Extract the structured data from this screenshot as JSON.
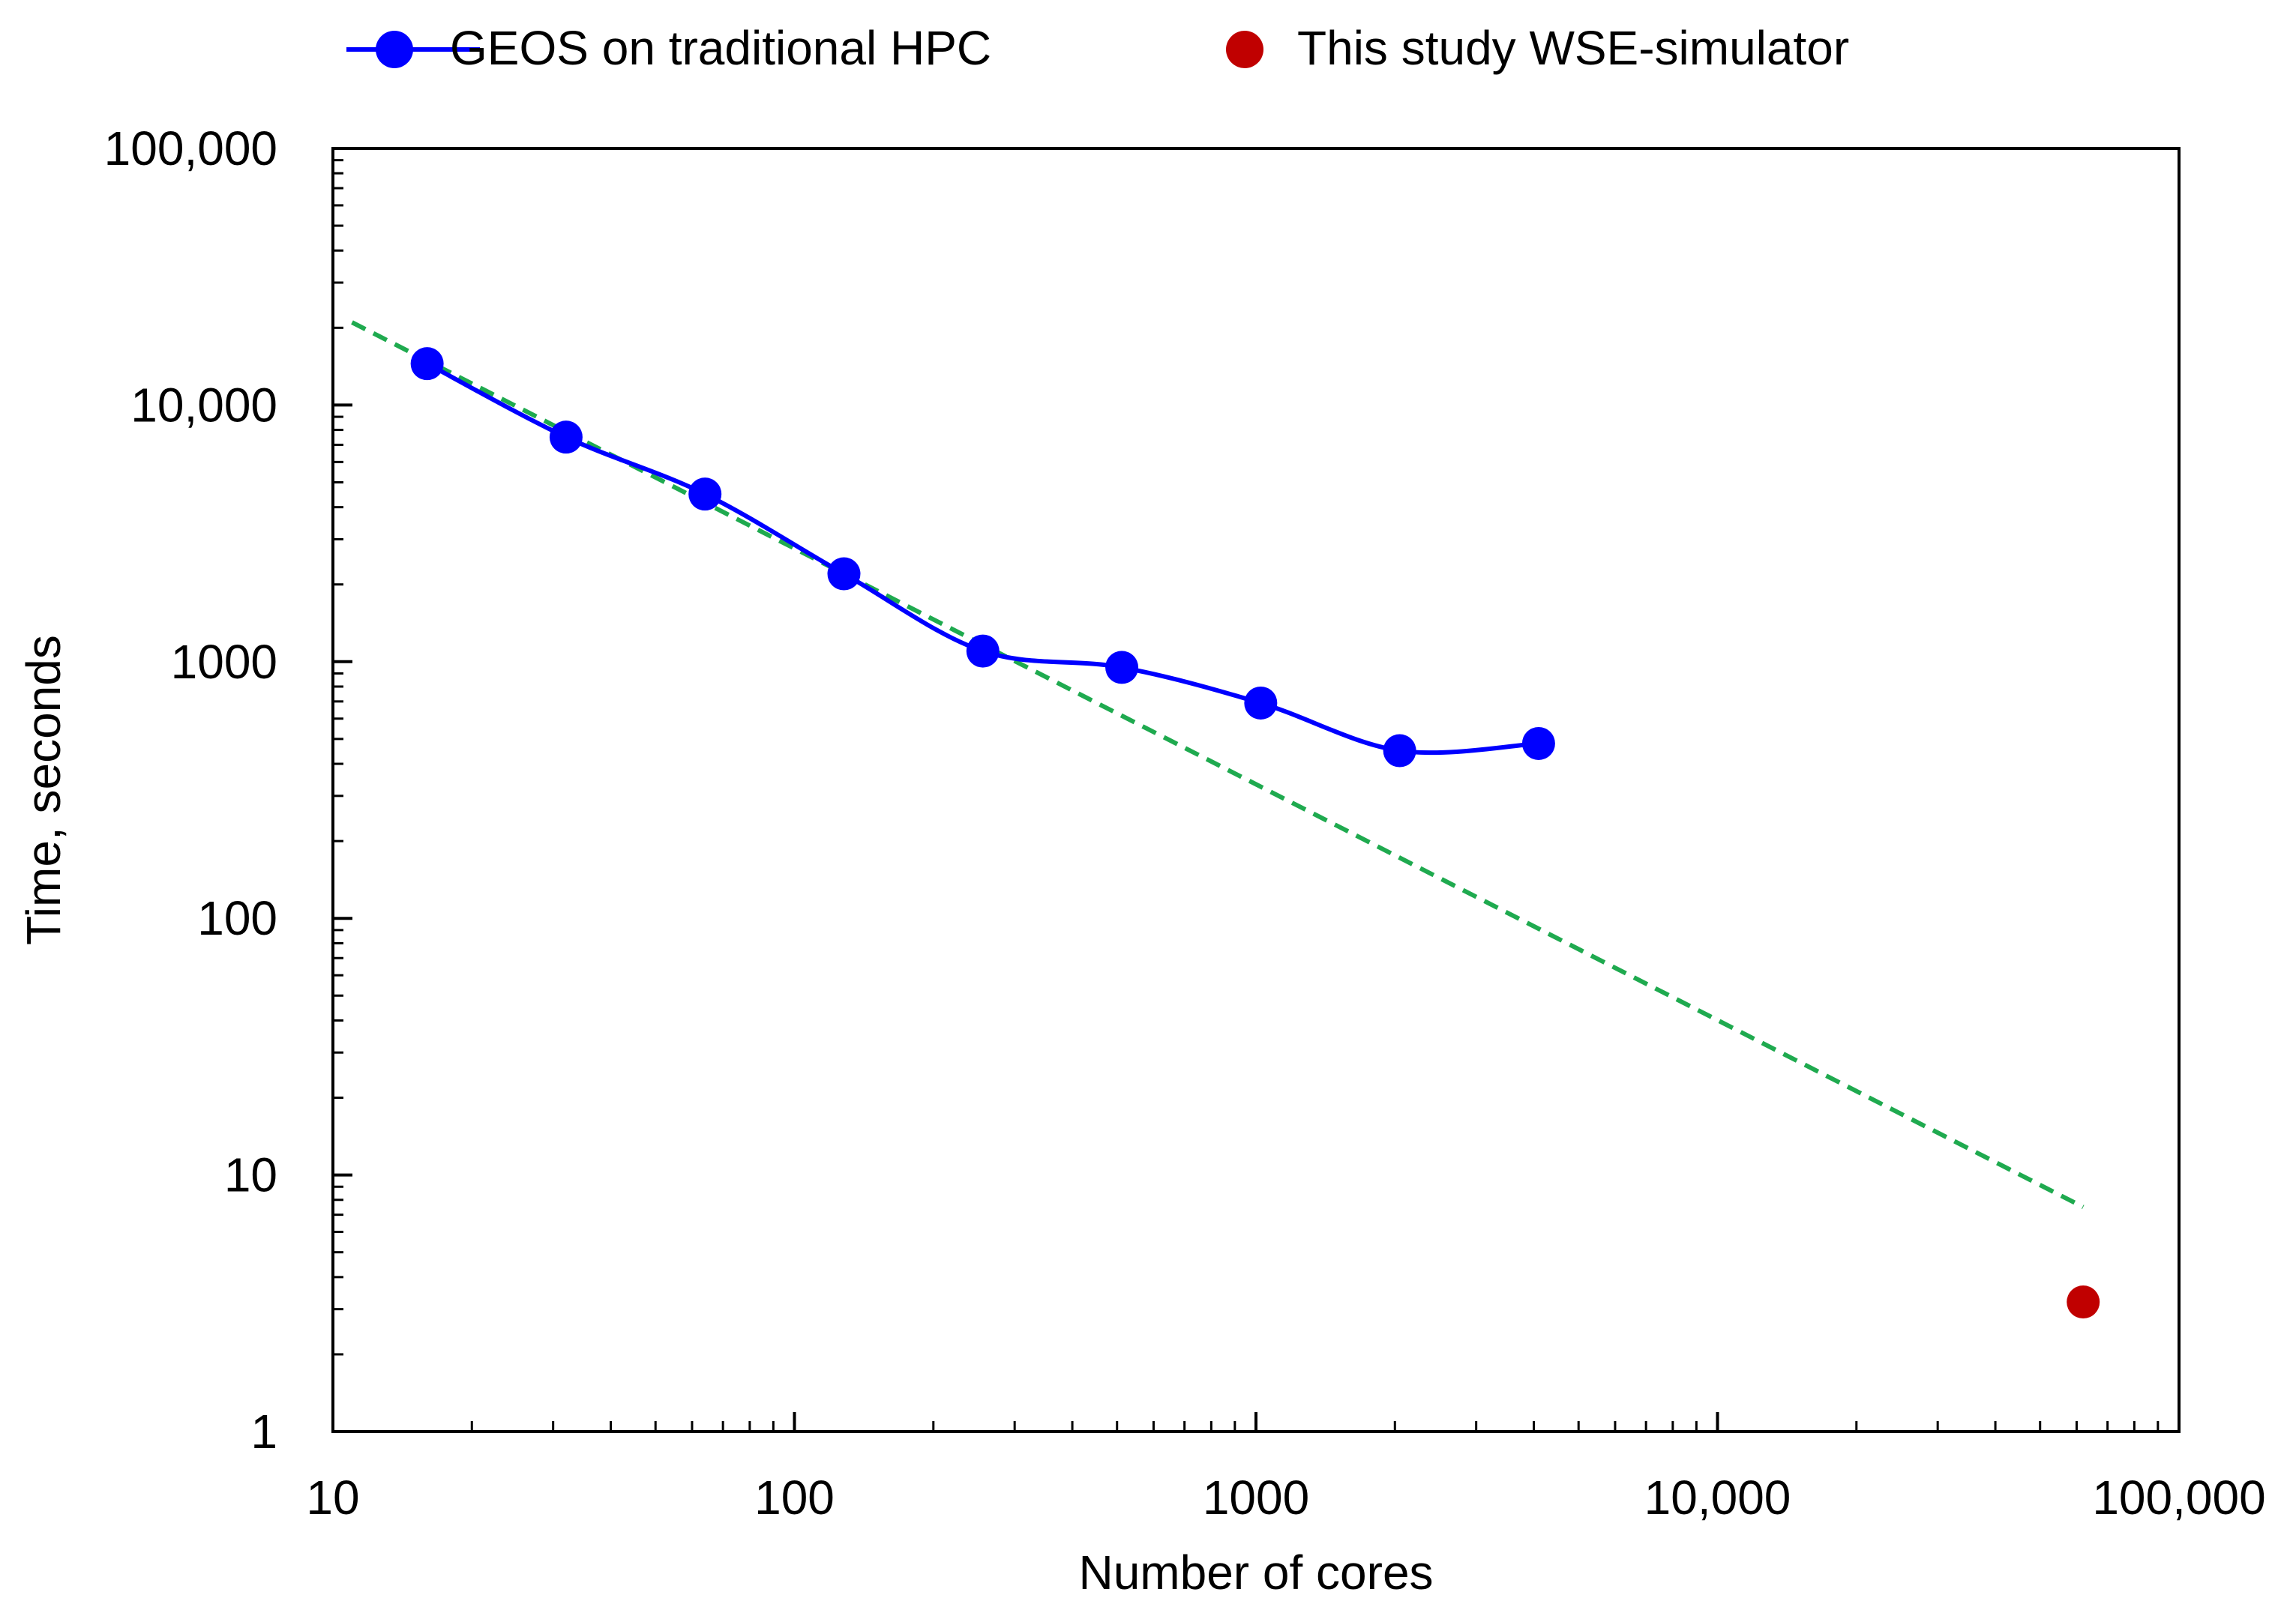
{
  "chart_data": {
    "type": "scatter",
    "title": "",
    "xlabel": "Number of cores",
    "ylabel": "Time, seconds",
    "xscale": "log",
    "yscale": "log",
    "xlim": [
      10,
      100000
    ],
    "ylim": [
      1,
      100000
    ],
    "x_tick_labels": [
      "10",
      "100",
      "1000",
      "10,000",
      "100,000"
    ],
    "x_tick_values": [
      10,
      100,
      1000,
      10000,
      100000
    ],
    "y_tick_labels": [
      "1",
      "10",
      "100",
      "1000",
      "10,000",
      "100,000"
    ],
    "y_tick_values": [
      1,
      10,
      100,
      1000,
      10000,
      100000
    ],
    "grid": false,
    "legend_position": "top",
    "series": [
      {
        "name": "GEOS on traditional HPC",
        "color": "#0000FF",
        "style": "smooth-line-with-markers",
        "x": [
          16,
          32,
          64,
          128,
          256,
          512,
          1024,
          2048,
          4096
        ],
        "y": [
          14500,
          7500,
          4500,
          2200,
          1100,
          950,
          690,
          450,
          480
        ]
      },
      {
        "name": "This study WSE-simulator",
        "color": "#C00000",
        "style": "markers",
        "x": [
          62000
        ],
        "y": [
          3.2
        ]
      }
    ],
    "trendline": {
      "color": "#1FAA4F",
      "style": "dashed",
      "x": [
        11,
        62000
      ],
      "y": [
        21000,
        7.5
      ]
    }
  }
}
